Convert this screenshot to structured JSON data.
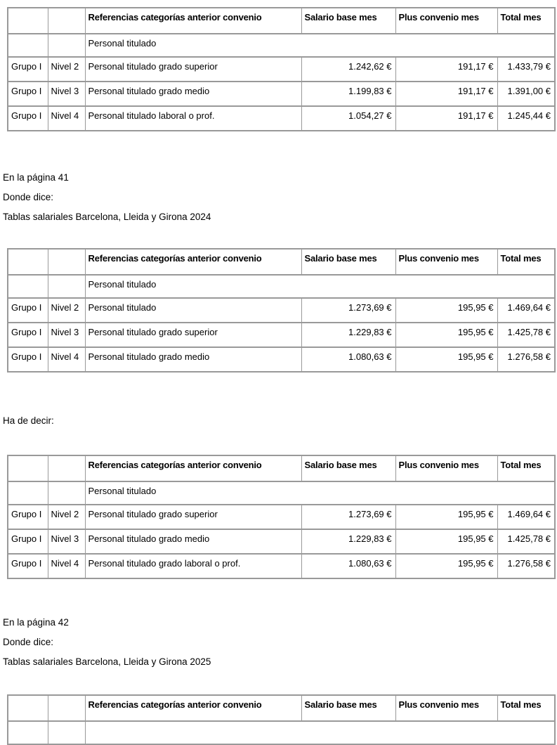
{
  "colors": {
    "background": "#ffffff",
    "text": "#000000",
    "table_border": "#999999"
  },
  "table_template": {
    "columns": [
      "",
      "",
      "Referencias categorías anterior convenio",
      "Salario base mes",
      "Plus convenio mes",
      "Total mes"
    ]
  },
  "tables": [
    {
      "subheader": "Personal titulado",
      "rows": [
        [
          "Grupo I",
          "Nivel 2",
          "Personal titulado grado superior",
          "1.242,62 €",
          "191,17 €",
          "1.433,79 €"
        ],
        [
          "Grupo I",
          "Nivel 3",
          "Personal titulado grado medio",
          "1.199,83 €",
          "191,17 €",
          "1.391,00 €"
        ],
        [
          "Grupo I",
          "Nivel 4",
          "Personal titulado laboral o prof.",
          "1.054,27 €",
          "191,17 €",
          "1.245,44 €"
        ]
      ]
    },
    {
      "subheader": "Personal titulado",
      "rows": [
        [
          "Grupo I",
          "Nivel 2",
          "Personal titulado",
          "1.273,69 €",
          "195,95 €",
          "1.469,64 €"
        ],
        [
          "Grupo I",
          "Nivel 3",
          "Personal titulado grado superior",
          "1.229,83 €",
          "195,95 €",
          "1.425,78 €"
        ],
        [
          "Grupo I",
          "Nivel 4",
          "Personal titulado grado medio",
          "1.080,63 €",
          "195,95 €",
          "1.276,58 €"
        ]
      ]
    },
    {
      "subheader": "Personal titulado",
      "rows": [
        [
          "Grupo I",
          "Nivel 2",
          "Personal titulado grado superior",
          "1.273,69 €",
          "195,95 €",
          "1.469,64 €"
        ],
        [
          "Grupo I",
          "Nivel 3",
          "Personal titulado grado medio",
          "1.229,83 €",
          "195,95 €",
          "1.425,78 €"
        ],
        [
          "Grupo I",
          "Nivel 4",
          "Personal titulado grado laboral o prof.",
          "1.080,63 €",
          "195,95 €",
          "1.276,58 €"
        ]
      ]
    },
    {
      "subheader": "",
      "rows": []
    }
  ],
  "paragraphs": {
    "page41": "En la página 41",
    "donde_dice_1": "Donde dice:",
    "tablas_2024": "Tablas salariales Barcelona, Lleida y Girona 2024",
    "ha_de_decir": "Ha de decir:",
    "page42": "En la página 42",
    "donde_dice_2": "Donde dice:",
    "tablas_2025": "Tablas salariales Barcelona, Lleida y Girona 2025"
  }
}
